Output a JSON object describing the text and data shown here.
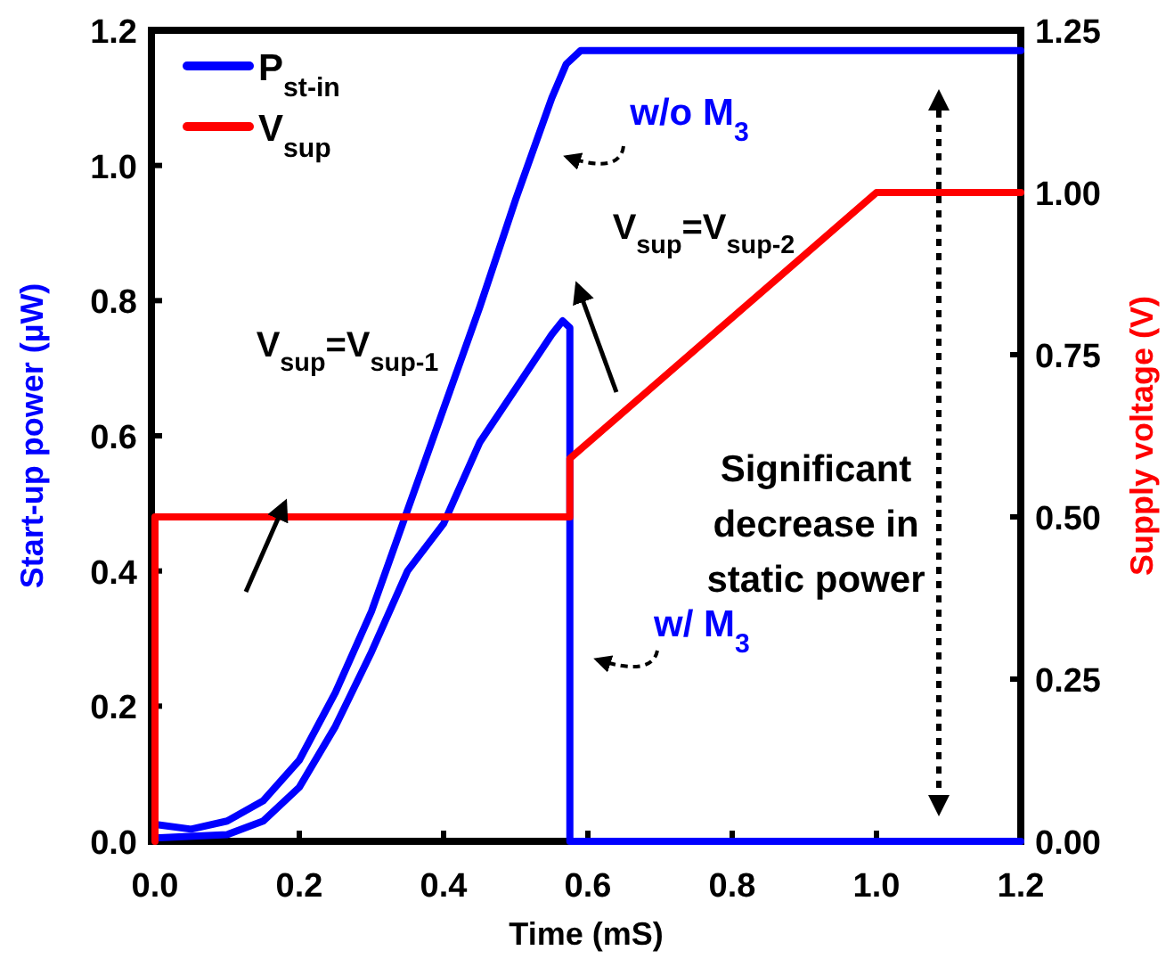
{
  "chart_data": {
    "type": "line",
    "xlabel": "Time (mS)",
    "ylabel": "Start-up power (µW)",
    "y2label": "Supply voltage (V)",
    "xlim": [
      0,
      1.2
    ],
    "xticks": [
      {
        "value": 0,
        "label": "0.0"
      },
      {
        "value": 0.2,
        "label": "0.2"
      },
      {
        "value": 0.4,
        "label": "0.4"
      },
      {
        "value": 0.6,
        "label": "0.6"
      },
      {
        "value": 0.8,
        "label": "0.8"
      },
      {
        "value": 1,
        "label": "1.0"
      },
      {
        "value": 1.2,
        "label": "1.2"
      }
    ],
    "ylim": [
      0,
      1.2
    ],
    "yticks": [
      {
        "value": 0,
        "label": "0.0"
      },
      {
        "value": 0.2,
        "label": "0.2"
      },
      {
        "value": 0.4,
        "label": "0.4"
      },
      {
        "value": 0.6,
        "label": "0.6"
      },
      {
        "value": 0.8,
        "label": "0.8"
      },
      {
        "value": 1,
        "label": "1.0"
      },
      {
        "value": 1.2,
        "label": "1.2"
      }
    ],
    "y2lim": [
      0,
      1.25
    ],
    "y2ticks": [
      {
        "value": 0,
        "label": "0.00"
      },
      {
        "value": 0.25,
        "label": "0.25"
      },
      {
        "value": 0.5,
        "label": "0.50"
      },
      {
        "value": 0.75,
        "label": "0.75"
      },
      {
        "value": 1,
        "label": "1.00"
      },
      {
        "value": 1.25,
        "label": "1.25"
      }
    ],
    "legend": "top left",
    "grid": false,
    "marker": "none",
    "line_style": "solid",
    "series": [
      {
        "name": "P$_{st-in}$",
        "color": "#0000ff",
        "x": [
          0,
          0.05,
          0.1,
          0.15,
          0.2,
          0.25,
          0.3,
          0.35,
          0.4,
          0.45,
          0.5,
          0.55,
          0.57,
          0.59,
          1.2
        ],
        "values": [
          0.025,
          0.018,
          0.03,
          0.06,
          0.12,
          0.22,
          0.34,
          0.49,
          0.64,
          0.79,
          0.95,
          1.1,
          1.15,
          1.17,
          1.17
        ]
      },
      {
        "color": "#0000ff",
        "x": [
          0,
          0.1,
          0.15,
          0.2,
          0.25,
          0.3,
          0.35,
          0.4,
          0.45,
          0.5,
          0.55,
          0.565,
          0.575,
          0.575,
          1.2
        ],
        "values": [
          0.005,
          0.01,
          0.03,
          0.08,
          0.17,
          0.28,
          0.4,
          0.47,
          0.59,
          0.67,
          0.75,
          0.77,
          0.76,
          0,
          0
        ]
      },
      {
        "name": "V$_{sup}$",
        "color": "#ff0000",
        "axis": "y2",
        "x": [
          0,
          0,
          0.575,
          0.575,
          1,
          1.2
        ],
        "values": [
          0,
          0.5,
          0.5,
          0.59,
          1,
          1
        ]
      }
    ],
    "annotations": [
      "V$_{sup}$=V$_{sup-1}$",
      "V$_{sup}$=V$_{sup-2}$",
      "w/o M$_{3}$",
      "w/ M$_{3}$",
      "Significant decrease in static power"
    ]
  }
}
